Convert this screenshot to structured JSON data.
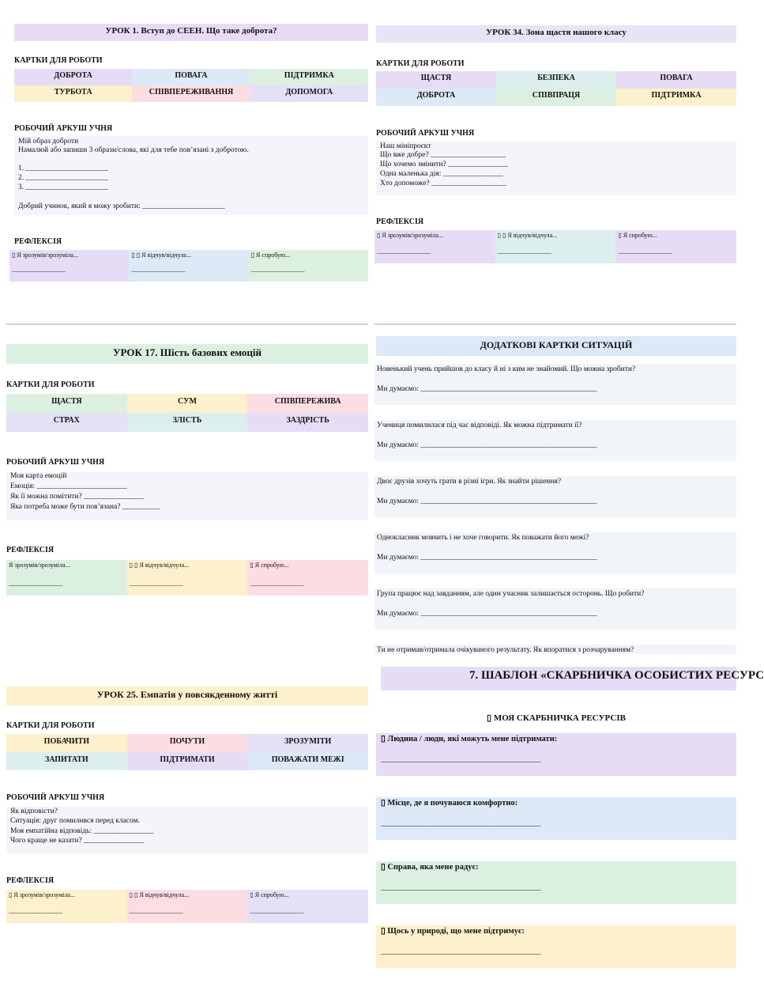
{
  "lessons": [
    {
      "title": "УРОК 1. Вступ до СЕЕН. Що таке доброта?",
      "cards_heading": "КАРТКИ ДЛЯ РОБОТИ",
      "cards": [
        [
          "ДОБРОТА",
          "ПОВАГА",
          "ПІДТРИМКА"
        ],
        [
          "ТУРБОТА",
          "СПІВПЕРЕЖИВАННЯ",
          "ДОПОМОГА"
        ]
      ],
      "worksheet_heading": "РОБОЧИЙ АРКУШ УЧНЯ",
      "worksheet": [
        "Мій образ доброти",
        "Намалюй або запиши 3 образи/слова, які для тебе пов’язані з добротою.",
        "1. ______________________",
        "2. ______________________",
        "3. ______________________",
        "Добрий учинок, який я можу зробити: ______________________"
      ],
      "reflection_heading": "РЕФЛЕКСІЯ",
      "reflection": [
        {
          "text": "▯ Я зрозумів/зрозуміла...",
          "blank": "_________________"
        },
        {
          "text": "▯ ▯ Я відчув/відчула...",
          "blank": "_________________"
        },
        {
          "text": "▯ Я спробую...",
          "blank": "_________________"
        }
      ]
    },
    {
      "title": "УРОК 34. Зона щастя нашого класу",
      "cards_heading": "КАРТКИ ДЛЯ РОБОТИ",
      "cards": [
        [
          "ЩАСТЯ",
          "БЕЗПЕКА",
          "ПОВАГА"
        ],
        [
          "ДОБРОТА",
          "СПІВПРАЦЯ",
          "ПІДТРИМКА"
        ]
      ],
      "worksheet_heading": "РОБОЧИЙ АРКУШ УЧНЯ",
      "worksheet": [
        "Наш мініпроєкт",
        "Що вже добре? ____________________",
        "Що хочемо змінити? ________________",
        "Одна маленька дія: ________________",
        "Хто допоможе? ____________________"
      ],
      "reflection_heading": "РЕФЛЕКСІЯ",
      "reflection": [
        {
          "text": "▯ Я зрозумів/зрозуміла...",
          "blank": "_________________"
        },
        {
          "text": "▯ ▯ Я відчув/відчула...",
          "blank": "_________________"
        },
        {
          "text": "▯ Я спробую...",
          "blank": "_________________"
        }
      ]
    },
    {
      "title": "УРОК 17. Шість базових емоцій",
      "cards_heading": "КАРТКИ ДЛЯ РОБОТИ",
      "cards": [
        [
          "ЩАСТЯ",
          "СУМ",
          "СПІВПЕРЕЖИВА"
        ],
        [
          "СТРАХ",
          "ЗЛІСТЬ",
          "ЗАЗДРІСТЬ"
        ]
      ],
      "worksheet_heading": "РОБОЧИЙ АРКУШ УЧНЯ",
      "worksheet": [
        "Моя карта емоцій",
        "Емоція: ________________________",
        "Як її можна помітити? ________________",
        "Яка потреба може бути пов’язана? __________"
      ],
      "reflection_heading": "РЕФЛЕКСІЯ",
      "reflection": [
        {
          "text": "Я зрозумів/зрозуміла...",
          "blank": "_________________"
        },
        {
          "text": "▯ ▯ Я відчув/відчула...",
          "blank": "_________________"
        },
        {
          "text": "▯ Я спробую...",
          "blank": "_________________"
        }
      ]
    },
    {
      "title": "УРОК 25. Емпатія у повсякденному житті",
      "cards_heading": "КАРТКИ ДЛЯ РОБОТИ",
      "cards": [
        [
          "ПОБАЧИТИ",
          "ПОЧУТИ",
          "ЗРОЗУМІТИ"
        ],
        [
          "ЗАПИТАТИ",
          "ПІДТРИМАТИ",
          "ПОВАЖАТИ МЕЖІ"
        ]
      ],
      "worksheet_heading": "РОБОЧИЙ АРКУШ УЧНЯ",
      "worksheet": [
        "Як відповісти?",
        "Ситуація: друг помилився перед класом.",
        "Моя емпатійна відповідь: ________________",
        "Чого краще не казати? ________________"
      ],
      "reflection_heading": "РЕФЛЕКСІЯ",
      "reflection": [
        {
          "text": "▯ Я зрозумів/зрозуміла...",
          "blank": "_________________"
        },
        {
          "text": "▯ ▯ Я відчув/відчула...",
          "blank": "_________________"
        },
        {
          "text": "▯ Я спробую...",
          "blank": "_________________"
        }
      ]
    }
  ],
  "situations": {
    "title": "ДОДАТКОВІ КАРТКИ СИТУАЦІЙ",
    "items": [
      {
        "question": "Новенький учень прийшов до класу й ні з ким не знайомий. Що можна зробити?",
        "answer": "Ми думаємо: _______________________________________________"
      },
      {
        "question": "Учениця помилилася під час відповіді. Як можна підтримати її?",
        "answer": "Ми думаємо: _______________________________________________"
      },
      {
        "question": "Двоє друзів хочуть грати в різні ігри. Як знайти рішення?",
        "answer": "Ми думаємо: _______________________________________________"
      },
      {
        "question": "Однокласник мовчить і не хоче говорити. Як поважати його межі?",
        "answer": "Ми думаємо: _______________________________________________"
      },
      {
        "question": "Група працює над завданням, але один учасник залишається осторонь. Що робити?",
        "answer": "Ми думаємо: _______________________________________________"
      },
      {
        "question": "Ти не отримав/отримала очікуваного результату. Як впоратися з розчаруванням?"
      }
    ]
  },
  "template": {
    "title": "7. ШАБЛОН «СКАРБНИЧКА ОСОБИСТИХ РЕСУРС",
    "subtitle": "▯ МОЯ СКАРБНИЧКА РЕСУРСІВ",
    "items": [
      {
        "label": "▯ Людина / люди, які можуть мене підтримати:",
        "line": "_____________________________________________"
      },
      {
        "label": "▯ Місце, де я почуваюся комфортно:",
        "line": "_____________________________________________"
      },
      {
        "label": "▯ Справа, яка мене радує:",
        "line": "_____________________________________________"
      },
      {
        "label": "▯ Щось у природі, що мене підтримує:",
        "line": "_____________________________________________"
      }
    ]
  }
}
